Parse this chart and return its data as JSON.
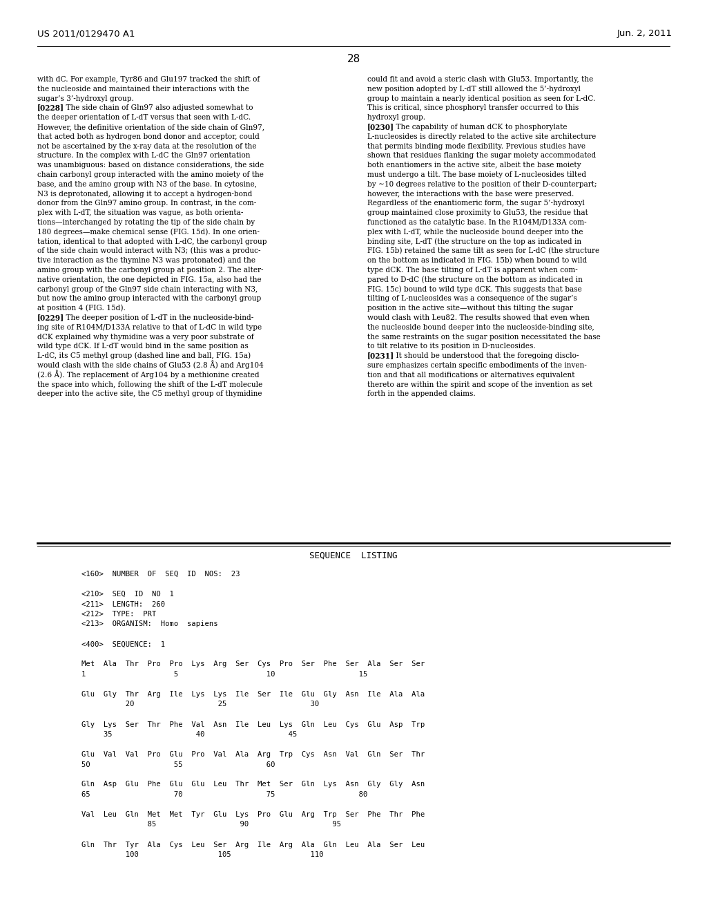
{
  "patent_number": "US 2011/0129470 A1",
  "date": "Jun. 2, 2011",
  "page_number": "28",
  "background_color": "#ffffff",
  "text_color": "#000000",
  "left_column_text": [
    "with dC. For example, Tyr86 and Glu197 tracked the shift of",
    "the nucleoside and maintained their interactions with the",
    "sugar’s 3’-hydroxyl group.",
    "[0228]    The side chain of Gln97 also adjusted somewhat to",
    "the deeper orientation of L-dT versus that seen with L-dC.",
    "However, the definitive orientation of the side chain of Gln97,",
    "that acted both as hydrogen bond donor and acceptor, could",
    "not be ascertained by the x-ray data at the resolution of the",
    "structure. In the complex with L-dC the Gln97 orientation",
    "was unambiguous: based on distance considerations, the side",
    "chain carbonyl group interacted with the amino moiety of the",
    "base, and the amino group with N3 of the base. In cytosine,",
    "N3 is deprotonated, allowing it to accept a hydrogen-bond",
    "donor from the Gln97 amino group. In contrast, in the com-",
    "plex with L-dT, the situation was vague, as both orienta-",
    "tions—interchanged by rotating the tip of the side chain by",
    "180 degrees—make chemical sense (FIG. 15d). In one orien-",
    "tation, identical to that adopted with L-dC, the carbonyl group",
    "of the side chain would interact with N3; (this was a produc-",
    "tive interaction as the thymine N3 was protonated) and the",
    "amino group with the carbonyl group at position 2. The alter-",
    "native orientation, the one depicted in FIG. 15a, also had the",
    "carbonyl group of the Gln97 side chain interacting with N3,",
    "but now the amino group interacted with the carbonyl group",
    "at position 4 (FIG. 15d).",
    "[0229]    The deeper position of L-dT in the nucleoside-bind-",
    "ing site of R104M/D133A relative to that of L-dC in wild type",
    "dCK explained why thymidine was a very poor substrate of",
    "wild type dCK. If L-dT would bind in the same position as",
    "L-dC, its C5 methyl group (dashed line and ball, FIG. 15a)",
    "would clash with the side chains of Glu53 (2.8 Å) and Arg104",
    "(2.6 Å). The replacement of Arg104 by a methionine created",
    "the space into which, following the shift of the L-dT molecule",
    "deeper into the active site, the C5 methyl group of thymidine"
  ],
  "right_column_text": [
    "could fit and avoid a steric clash with Glu53. Importantly, the",
    "new position adopted by L-dT still allowed the 5’-hydroxyl",
    "group to maintain a nearly identical position as seen for L-dC.",
    "This is critical, since phosphoryl transfer occurred to this",
    "hydroxyl group.",
    "[0230]    The capability of human dCK to phosphorylate",
    "L-nucleosides is directly related to the active site architecture",
    "that permits binding mode flexibility. Previous studies have",
    "shown that residues flanking the sugar moiety accommodated",
    "both enantiomers in the active site, albeit the base moiety",
    "must undergo a tilt. The base moiety of L-nucleosides tilted",
    "by ∼10 degrees relative to the position of their D-counterpart;",
    "however, the interactions with the base were preserved.",
    "Regardless of the enantiomeric form, the sugar 5’-hydroxyl",
    "group maintained close proximity to Glu53, the residue that",
    "functioned as the catalytic base. In the R104M/D133A com-",
    "plex with L-dT, while the nucleoside bound deeper into the",
    "binding site, L-dT (the structure on the top as indicated in",
    "FIG. 15b) retained the same tilt as seen for L-dC (the structure",
    "on the bottom as indicated in FIG. 15b) when bound to wild",
    "type dCK. The base tilting of L-dT is apparent when com-",
    "pared to D-dC (the structure on the bottom as indicated in",
    "FIG. 15c) bound to wild type dCK. This suggests that base",
    "tilting of L-nucleosides was a consequence of the sugar’s",
    "position in the active site—without this tilting the sugar",
    "would clash with Leu82. The results showed that even when",
    "the nucleoside bound deeper into the nucleoside-binding site,",
    "the same restraints on the sugar position necessitated the base",
    "to tilt relative to its position in D-nucleosides.",
    "[0231]    It should be understood that the foregoing disclo-",
    "sure emphasizes certain specific embodiments of the inven-",
    "tion and that all modifications or alternatives equivalent",
    "thereto are within the spirit and scope of the invention as set",
    "forth in the appended claims."
  ],
  "sequence_listing_header": "SEQUENCE  LISTING",
  "sequence_lines": [
    "<160>  NUMBER  OF  SEQ  ID  NOS:  23",
    "",
    "<210>  SEQ  ID  NO  1",
    "<211>  LENGTH:  260",
    "<212>  TYPE:  PRT",
    "<213>  ORGANISM:  Homo  sapiens",
    "",
    "<400>  SEQUENCE:  1",
    "",
    "Met  Ala  Thr  Pro  Pro  Lys  Arg  Ser  Cys  Pro  Ser  Phe  Ser  Ala  Ser  Ser",
    "1                    5                    10                   15",
    "",
    "Glu  Gly  Thr  Arg  Ile  Lys  Lys  Ile  Ser  Ile  Glu  Gly  Asn  Ile  Ala  Ala",
    "          20                   25                   30",
    "",
    "Gly  Lys  Ser  Thr  Phe  Val  Asn  Ile  Leu  Lys  Gln  Leu  Cys  Glu  Asp  Trp",
    "     35                   40                   45",
    "",
    "Glu  Val  Val  Pro  Glu  Pro  Val  Ala  Arg  Trp  Cys  Asn  Val  Gln  Ser  Thr",
    "50                   55                   60",
    "",
    "Gln  Asp  Glu  Phe  Glu  Glu  Leu  Thr  Met  Ser  Gln  Lys  Asn  Gly  Gly  Asn",
    "65                   70                   75                   80",
    "",
    "Val  Leu  Gln  Met  Met  Tyr  Glu  Lys  Pro  Glu  Arg  Trp  Ser  Phe  Thr  Phe",
    "               85                   90                   95",
    "",
    "Gln  Thr  Tyr  Ala  Cys  Leu  Ser  Arg  Ile  Arg  Ala  Gln  Leu  Ala  Ser  Leu",
    "          100                  105                  110"
  ],
  "bold_italic_words_left": {
    "14": [
      "15a"
    ],
    "16": [
      "15d"
    ],
    "21": [
      "15a"
    ],
    "24": [
      "15d"
    ],
    "25": [
      "15d"
    ],
    "29": [
      "15a"
    ],
    "32": []
  },
  "bold_italic_words_right": {
    "18": [
      "15b"
    ],
    "19": [
      "15b"
    ],
    "21": [],
    "22": [
      "15c"
    ]
  }
}
